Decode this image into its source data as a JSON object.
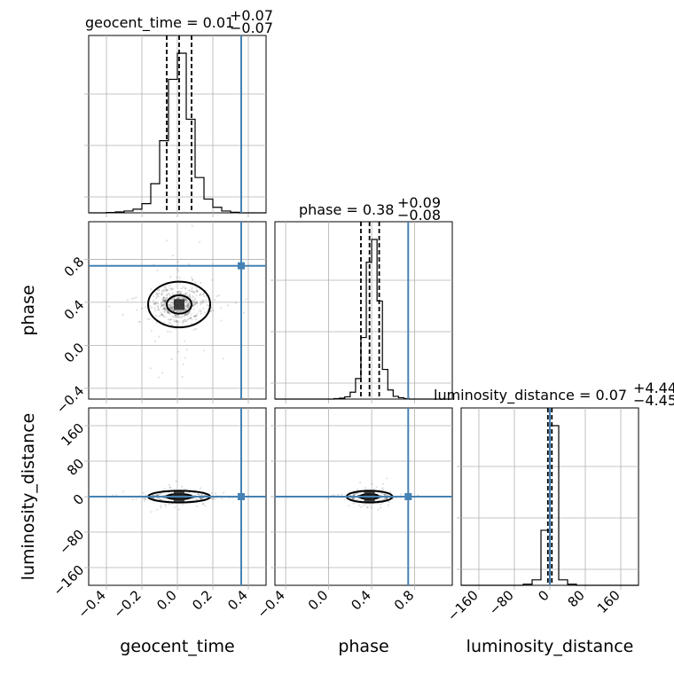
{
  "chart_data": {
    "type": "corner",
    "parameters": [
      "geocent_time",
      "phase",
      "luminosity_distance"
    ],
    "titles": [
      {
        "main": "geocent_time = 0.01",
        "upper": "+0.07",
        "lower": "−0.07"
      },
      {
        "main": "phase = 0.38",
        "upper": "+0.09",
        "lower": "−0.08"
      },
      {
        "main": "luminosity_distance = 0.07",
        "upper": "+4.44",
        "lower": "−4.45"
      }
    ],
    "truths": [
      0.36,
      0.74,
      0.0
    ],
    "medians": [
      0.01,
      0.38,
      0.07
    ],
    "quantiles": [
      [
        -0.06,
        0.01,
        0.08
      ],
      [
        0.3,
        0.38,
        0.47
      ],
      [
        -4.38,
        0.07,
        4.51
      ]
    ],
    "ranges": [
      [
        -0.5,
        0.5
      ],
      [
        -0.5,
        1.15
      ],
      [
        -200,
        200
      ]
    ],
    "ticks": {
      "geocent_time": [
        "−0.4",
        "−0.2",
        "0.0",
        "0.2",
        "0.4"
      ],
      "phase": [
        "−0.4",
        "0.0",
        "0.4",
        "0.8"
      ],
      "luminosity_distance": [
        "−160",
        "−80",
        "0",
        "80",
        "160"
      ]
    },
    "tick_values": {
      "geocent_time": [
        -0.4,
        -0.2,
        0.0,
        0.2,
        0.4
      ],
      "phase": [
        -0.4,
        0.0,
        0.4,
        0.8
      ],
      "luminosity_distance": [
        -160,
        -80,
        0,
        80,
        160
      ]
    },
    "histograms": [
      {
        "bins": [
          -0.5,
          -0.45,
          -0.4,
          -0.35,
          -0.3,
          -0.25,
          -0.2,
          -0.15,
          -0.1,
          -0.05,
          0.0,
          0.05,
          0.1,
          0.15,
          0.2,
          0.25,
          0.3,
          0.35,
          0.4,
          0.45,
          0.5
        ],
        "counts": [
          0,
          0,
          1,
          3,
          6,
          12,
          30,
          95,
          235,
          435,
          520,
          305,
          115,
          45,
          18,
          6,
          2,
          0,
          0,
          0
        ]
      },
      {
        "bins": [
          -0.5,
          -0.45,
          -0.4,
          -0.35,
          -0.3,
          -0.25,
          -0.2,
          -0.15,
          -0.1,
          -0.05,
          0.0,
          0.05,
          0.1,
          0.15,
          0.2,
          0.25,
          0.3,
          0.35,
          0.4,
          0.45,
          0.5,
          0.55,
          0.6,
          0.65,
          0.7,
          0.75,
          0.8,
          0.85,
          0.9,
          0.95,
          1.0,
          1.05,
          1.1,
          1.15
        ],
        "counts": [
          0,
          0,
          0,
          0,
          0,
          0,
          0,
          0,
          0,
          0,
          0,
          1,
          2,
          5,
          15,
          45,
          135,
          300,
          350,
          215,
          65,
          20,
          6,
          3,
          1,
          0,
          0,
          0,
          0,
          0,
          0,
          0,
          0
        ]
      },
      {
        "bins": [
          -200,
          -180,
          -160,
          -140,
          -120,
          -100,
          -80,
          -60,
          -40,
          -20,
          0,
          20,
          40,
          60,
          80,
          100,
          120,
          140,
          160,
          180,
          200
        ],
        "counts": [
          0,
          0,
          0,
          0,
          0,
          0,
          0,
          1,
          5,
          50,
          145,
          5,
          1,
          0,
          0,
          0,
          0,
          0,
          0,
          0
        ]
      }
    ],
    "grid": true,
    "truth_color": "#4682b4"
  }
}
